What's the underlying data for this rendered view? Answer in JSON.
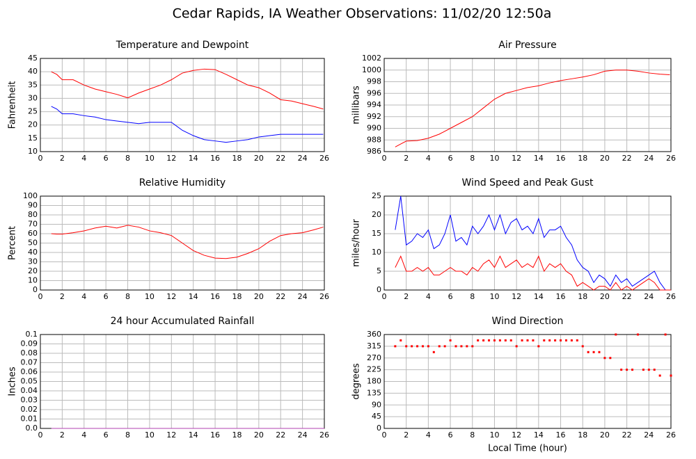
{
  "title": "Cedar Rapids, IA Weather Observations: 11/02/20 12:50a",
  "chart_data": [
    {
      "type": "line",
      "title": "Temperature and Dewpoint",
      "ylabel": "Fahrenheit",
      "x": [
        1,
        1.5,
        2,
        3,
        4,
        5,
        6,
        7,
        8,
        9,
        10,
        11,
        12,
        13,
        14,
        15,
        16,
        17,
        18,
        19,
        20,
        21,
        22,
        23,
        24,
        25,
        25.9
      ],
      "series": [
        {
          "color": "#ff0000",
          "values": [
            40,
            39,
            37,
            37,
            35,
            33.5,
            32.5,
            31.5,
            30.2,
            32,
            33.5,
            35,
            37,
            39.5,
            40.5,
            41,
            40.8,
            39,
            37,
            35,
            34,
            32,
            29.5,
            29,
            28,
            27,
            26
          ]
        },
        {
          "color": "#0000ff",
          "values": [
            27,
            26,
            24.2,
            24.2,
            23.5,
            23,
            22,
            21.5,
            21,
            20.5,
            21,
            21,
            21,
            18,
            16,
            14.5,
            14,
            13.5,
            14,
            14.5,
            15.5,
            16,
            16.5,
            16.5,
            16.5,
            16.5,
            16.5
          ]
        }
      ],
      "xlim": [
        0,
        26
      ],
      "xticks": [
        0,
        2,
        4,
        6,
        8,
        10,
        12,
        14,
        16,
        18,
        20,
        22,
        24,
        26
      ],
      "ylim": [
        10,
        45
      ],
      "yticks": [
        10,
        15,
        20,
        25,
        30,
        35,
        40,
        45
      ],
      "grid": true
    },
    {
      "type": "line",
      "title": "Air Pressure",
      "ylabel": "millibars",
      "x": [
        1,
        1.5,
        2,
        3,
        4,
        5,
        6,
        7,
        8,
        9,
        10,
        11,
        12,
        13,
        14,
        15,
        16,
        17,
        18,
        19,
        20,
        21,
        22,
        23,
        24,
        25,
        25.9
      ],
      "series": [
        {
          "color": "#ff0000",
          "values": [
            986.8,
            987.3,
            987.8,
            987.9,
            988.3,
            989,
            990,
            991,
            992,
            993.5,
            995,
            996,
            996.5,
            997,
            997.3,
            997.8,
            998.2,
            998.5,
            998.8,
            999.2,
            999.8,
            1000,
            1000,
            999.8,
            999.5,
            999.3,
            999.2
          ]
        }
      ],
      "xlim": [
        0,
        26
      ],
      "xticks": [
        0,
        2,
        4,
        6,
        8,
        10,
        12,
        14,
        16,
        18,
        20,
        22,
        24,
        26
      ],
      "ylim": [
        986,
        1002
      ],
      "yticks": [
        986,
        988,
        990,
        992,
        994,
        996,
        998,
        1000,
        1002
      ],
      "grid": true
    },
    {
      "type": "line",
      "title": "Relative Humidity",
      "ylabel": "Percent",
      "x": [
        1,
        1.5,
        2,
        3,
        4,
        5,
        6,
        7,
        8,
        9,
        10,
        11,
        12,
        13,
        14,
        15,
        16,
        17,
        18,
        19,
        20,
        21,
        22,
        23,
        24,
        25,
        25.9
      ],
      "series": [
        {
          "color": "#ff0000",
          "values": [
            60,
            59.5,
            59.5,
            61,
            63,
            66,
            68,
            66,
            69,
            67,
            63,
            61,
            58,
            50,
            42,
            37,
            34,
            33.5,
            35,
            39,
            44,
            52,
            58,
            60,
            61,
            64,
            67
          ]
        }
      ],
      "xlim": [
        0,
        26
      ],
      "xticks": [
        0,
        2,
        4,
        6,
        8,
        10,
        12,
        14,
        16,
        18,
        20,
        22,
        24,
        26
      ],
      "ylim": [
        0,
        100
      ],
      "yticks": [
        0,
        10,
        20,
        30,
        40,
        50,
        60,
        70,
        80,
        90,
        100
      ],
      "grid": true
    },
    {
      "type": "line",
      "title": "Wind Speed and Peak Gust",
      "ylabel": "miles/hour",
      "x": [
        1,
        1.5,
        2,
        2.5,
        3,
        3.5,
        4,
        4.5,
        5,
        5.5,
        6,
        6.5,
        7,
        7.5,
        8,
        8.5,
        9,
        9.5,
        10,
        10.5,
        11,
        11.5,
        12,
        12.5,
        13,
        13.5,
        14,
        14.5,
        15,
        15.5,
        16,
        16.5,
        17,
        17.5,
        18,
        18.5,
        19,
        19.5,
        20,
        20.5,
        21,
        21.5,
        22,
        22.5,
        23,
        23.5,
        24,
        24.5,
        25,
        25.5,
        26
      ],
      "series": [
        {
          "color": "#0000ff",
          "values": [
            16,
            25,
            12,
            13,
            15,
            14,
            16,
            11,
            12,
            15,
            20,
            13,
            14,
            12,
            17,
            15,
            17,
            20,
            16,
            20,
            15,
            18,
            19,
            16,
            17,
            15,
            19,
            14,
            16,
            16,
            17,
            14,
            12,
            8,
            6,
            5,
            2,
            4,
            3,
            1,
            4,
            2,
            3,
            1,
            2,
            3,
            4,
            5,
            2,
            0,
            0
          ]
        },
        {
          "color": "#ff0000",
          "values": [
            6,
            9,
            5,
            5,
            6,
            5,
            6,
            4,
            4,
            5,
            6,
            5,
            5,
            4,
            6,
            5,
            7,
            8,
            6,
            9,
            6,
            7,
            8,
            6,
            7,
            6,
            9,
            5,
            7,
            6,
            7,
            5,
            4,
            1,
            2,
            1,
            0,
            1,
            1,
            0,
            2,
            0,
            1,
            0,
            1,
            2,
            3,
            2,
            0,
            0,
            0
          ]
        }
      ],
      "xlim": [
        0,
        26
      ],
      "xticks": [
        0,
        2,
        4,
        6,
        8,
        10,
        12,
        14,
        16,
        18,
        20,
        22,
        24,
        26
      ],
      "ylim": [
        0,
        25
      ],
      "yticks": [
        0,
        5,
        10,
        15,
        20,
        25
      ],
      "grid": true
    },
    {
      "type": "line",
      "title": "24 hour Accumulated Rainfall",
      "ylabel": "Inches",
      "x": [
        1,
        26
      ],
      "series": [
        {
          "color": "#b040b0",
          "values": [
            0,
            0
          ]
        }
      ],
      "xlim": [
        0,
        26
      ],
      "xticks": [
        0,
        2,
        4,
        6,
        8,
        10,
        12,
        14,
        16,
        18,
        20,
        22,
        24,
        26
      ],
      "ylim": [
        0,
        0.1
      ],
      "yticks": [
        {
          "value": 0,
          "label": "0.0"
        },
        0.01,
        0.02,
        0.03,
        0.04,
        0.05,
        0.06,
        0.07,
        0.08,
        0.09,
        0.1
      ],
      "grid": true
    },
    {
      "type": "scatter",
      "title": "Wind Direction",
      "ylabel": "degrees",
      "xlabel": "Local Time (hour)",
      "x": [
        1,
        1.5,
        2,
        2.5,
        3,
        3.5,
        4,
        4.5,
        5,
        5.5,
        6,
        6.5,
        7,
        7.5,
        8,
        8.5,
        9,
        9.5,
        10,
        10.5,
        11,
        11.5,
        12,
        12.5,
        13,
        13.5,
        14,
        14.5,
        15,
        15.5,
        16,
        16.5,
        17,
        17.5,
        18,
        18.5,
        19,
        19.5,
        20,
        20.5,
        21,
        21.5,
        22,
        22.5,
        23,
        23.5,
        24,
        24.5,
        25,
        25.5,
        26
      ],
      "series": [
        {
          "color": "#ff0000",
          "values": [
            315,
            337.5,
            315,
            315,
            315,
            315,
            315,
            292.5,
            315,
            315,
            337.5,
            315,
            315,
            315,
            315,
            337.5,
            337.5,
            337.5,
            337.5,
            337.5,
            337.5,
            337.5,
            315,
            337.5,
            337.5,
            337.5,
            315,
            337.5,
            337.5,
            337.5,
            337.5,
            337.5,
            337.5,
            337.5,
            315,
            292.5,
            292.5,
            292.5,
            270,
            270,
            360,
            225,
            225,
            225,
            360,
            225,
            225,
            225,
            202.5,
            360,
            202.5
          ]
        }
      ],
      "xlim": [
        0,
        26
      ],
      "xticks": [
        0,
        2,
        4,
        6,
        8,
        10,
        12,
        14,
        16,
        18,
        20,
        22,
        24,
        26
      ],
      "ylim": [
        0,
        360
      ],
      "yticks": [
        0,
        45,
        90,
        135,
        180,
        225,
        270,
        315,
        360
      ],
      "grid": true
    }
  ]
}
